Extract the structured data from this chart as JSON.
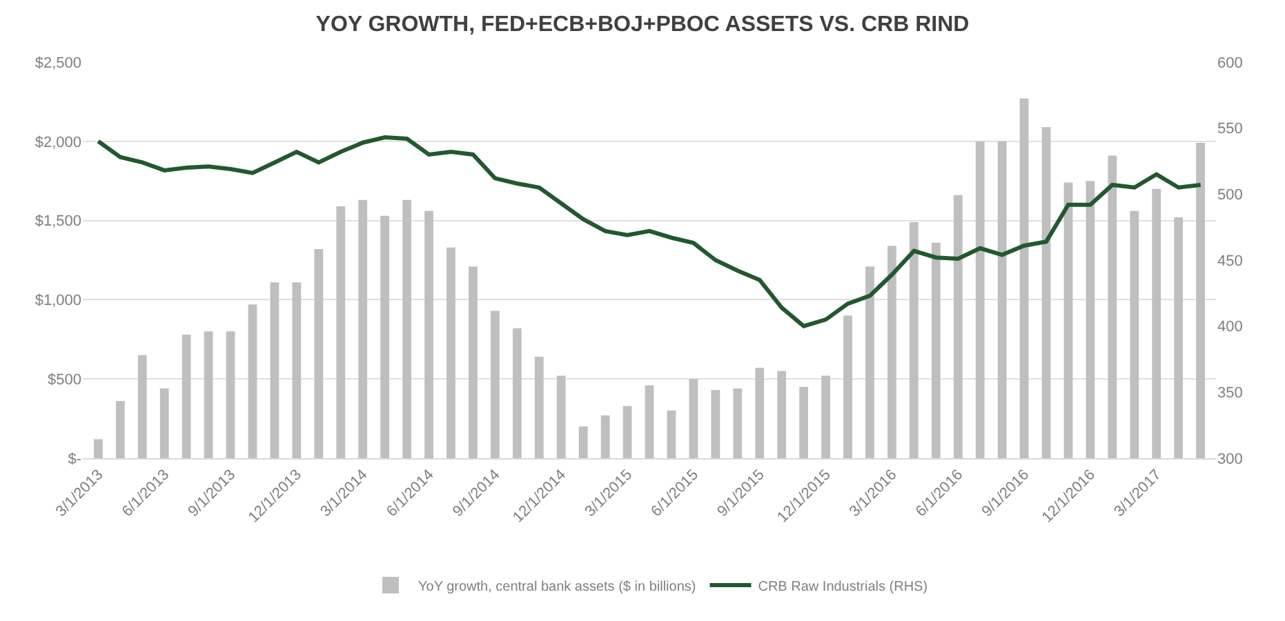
{
  "chart_data": {
    "type": "bar",
    "title": "YOY GROWTH, FED+ECB+BOJ+PBOC ASSETS VS. CRB RIND",
    "categories": [
      "3/1/2013",
      null,
      null,
      "6/1/2013",
      null,
      null,
      "9/1/2013",
      null,
      null,
      "12/1/2013",
      null,
      null,
      "3/1/2014",
      null,
      null,
      "6/1/2014",
      null,
      null,
      "9/1/2014",
      null,
      null,
      "12/1/2014",
      null,
      null,
      "3/1/2015",
      null,
      null,
      "6/1/2015",
      null,
      null,
      "9/1/2015",
      null,
      null,
      "12/1/2015",
      null,
      null,
      "3/1/2016",
      null,
      null,
      "6/1/2016",
      null,
      null,
      "9/1/2016",
      null,
      null,
      "12/1/2016",
      null,
      null,
      "3/1/2017",
      null,
      null
    ],
    "series": [
      {
        "name": "YoY growth, central bank assets ($ in billions)",
        "color": "#bfbfbf",
        "values": [
          120,
          360,
          650,
          440,
          780,
          800,
          800,
          970,
          1110,
          1110,
          1320,
          1590,
          1630,
          1530,
          1630,
          1560,
          1330,
          1210,
          930,
          820,
          640,
          520,
          200,
          270,
          330,
          460,
          300,
          500,
          430,
          440,
          570,
          550,
          450,
          520,
          900,
          1210,
          1340,
          1490,
          1360,
          1660,
          2000,
          2000,
          2270,
          2090,
          1740,
          1750,
          1910,
          1560,
          1700,
          1520,
          1990
        ]
      },
      {
        "name": "CRB Raw Industrials (RHS)",
        "type": "line",
        "axis": "y2",
        "color": "#22582e",
        "values": [
          540,
          528,
          524,
          518,
          520,
          521,
          519,
          516,
          524,
          532,
          524,
          532,
          539,
          543,
          542,
          530,
          532,
          530,
          512,
          508,
          505,
          493,
          481,
          472,
          469,
          472,
          467,
          463,
          450,
          442,
          435,
          414,
          400,
          405,
          417,
          423,
          439,
          457,
          452,
          451,
          459,
          454,
          461,
          464,
          492,
          492,
          507,
          505,
          515,
          505,
          507
        ]
      }
    ],
    "ylim": [
      0,
      2500
    ],
    "yticks": [
      {
        "value": 0,
        "label": "$-"
      },
      {
        "value": 500,
        "label": "$500"
      },
      {
        "value": 1000,
        "label": "$1,000"
      },
      {
        "value": 1500,
        "label": "$1,500"
      },
      {
        "value": 2000,
        "label": "$2,000"
      },
      {
        "value": 2500,
        "label": "$2,500"
      }
    ],
    "y2lim": [
      300,
      600
    ],
    "y2ticks": [
      300,
      350,
      400,
      450,
      500,
      550,
      600
    ],
    "grid": "y",
    "legend": "bottom",
    "marker": "none",
    "line_style": "solid"
  }
}
